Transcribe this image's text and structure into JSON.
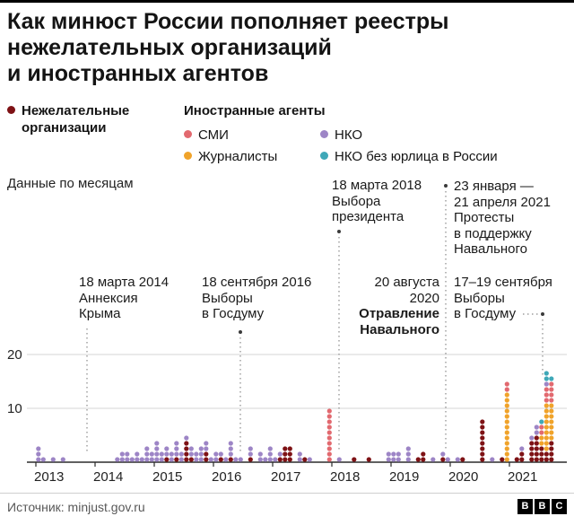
{
  "title": {
    "line1": "Как минюст России пополняет реестры",
    "line2": "нежелательных организаций",
    "line3": "и иностранных агентов"
  },
  "legend": {
    "undesirable": {
      "line1": "Нежелательные",
      "line2": "организации",
      "color": "#7e1215"
    },
    "foreign_header": "Иностранные агенты",
    "items": [
      {
        "label": "СМИ",
        "color": "#e2696f"
      },
      {
        "label": "Журналисты",
        "color": "#f0a32a"
      },
      {
        "label": "НКО",
        "color": "#9d85c6"
      },
      {
        "label": "НКО без юрлица в России",
        "color": "#3fa8b8"
      }
    ]
  },
  "chart_note": "Данные по месяцам",
  "annotations": {
    "crimea": {
      "lines": [
        "18 марта 2014",
        "Аннексия",
        "Крыма"
      ]
    },
    "duma2016": {
      "lines": [
        "18 сентября 2016",
        "Выборы",
        "в Госдуму"
      ]
    },
    "president2018": {
      "lines": [
        "18 марта 2018",
        "Выбора",
        "президента"
      ]
    },
    "navalny2020": {
      "lines": [
        "20 августа",
        "2020"
      ],
      "bold_lines": [
        "Отравление",
        "Навального"
      ]
    },
    "protests2021": {
      "lines": [
        "23 января —",
        "21 апреля 2021",
        "Протесты",
        "в поддержку",
        "Навального"
      ]
    },
    "duma2021": {
      "lines": [
        "17–19 сентября",
        "Выборы",
        "в Госдуму"
      ]
    }
  },
  "chart_data": {
    "type": "bar",
    "style": "stacked-dot-columns, one dot = one entry added per month",
    "title": "Как минюст России пополняет реестры нежелательных организаций и иностранных агентов",
    "x_years": [
      "2013",
      "2014",
      "2015",
      "2016",
      "2017",
      "2018",
      "2019",
      "2020",
      "2021"
    ],
    "y_ticks": [
      10,
      20
    ],
    "ylim": [
      0,
      25
    ],
    "grid": true,
    "series": {
      "u": "Нежелательные организации",
      "s": "СМИ (иностранные агенты)",
      "j": "Журналисты (иностранные агенты)",
      "n": "НКО (иностранные агенты)",
      "t": "НКО без юрлица в России (иностранные агенты)"
    },
    "colors": {
      "u": "#7e1215",
      "s": "#e2696f",
      "j": "#f0a32a",
      "n": "#9d85c6",
      "t": "#3fa8b8"
    },
    "stack_order": [
      "u",
      "j",
      "s",
      "n",
      "t"
    ],
    "columns": [
      {
        "m": "2013-01",
        "n": 3
      },
      {
        "m": "2013-02",
        "n": 1
      },
      {
        "m": "2013-04",
        "n": 1
      },
      {
        "m": "2013-06",
        "n": 1
      },
      {
        "m": "2014-05",
        "n": 1
      },
      {
        "m": "2014-06",
        "n": 2
      },
      {
        "m": "2014-07",
        "n": 2
      },
      {
        "m": "2014-08",
        "n": 1
      },
      {
        "m": "2014-09",
        "n": 2
      },
      {
        "m": "2014-10",
        "n": 1
      },
      {
        "m": "2014-11",
        "n": 3
      },
      {
        "m": "2014-12",
        "n": 2
      },
      {
        "m": "2015-01",
        "n": 4
      },
      {
        "m": "2015-02",
        "n": 2
      },
      {
        "m": "2015-03",
        "u": 1,
        "n": 2
      },
      {
        "m": "2015-04",
        "n": 2
      },
      {
        "m": "2015-05",
        "u": 1,
        "n": 3
      },
      {
        "m": "2015-06",
        "n": 2
      },
      {
        "m": "2015-07",
        "u": 4,
        "n": 1
      },
      {
        "m": "2015-08",
        "u": 1,
        "n": 2
      },
      {
        "m": "2015-09",
        "n": 2
      },
      {
        "m": "2015-10",
        "n": 3
      },
      {
        "m": "2015-11",
        "u": 2,
        "n": 2
      },
      {
        "m": "2015-12",
        "n": 1
      },
      {
        "m": "2016-01",
        "n": 2
      },
      {
        "m": "2016-02",
        "u": 1,
        "n": 1
      },
      {
        "m": "2016-03",
        "n": 1
      },
      {
        "m": "2016-04",
        "u": 1,
        "n": 3
      },
      {
        "m": "2016-05",
        "n": 1
      },
      {
        "m": "2016-06",
        "n": 1
      },
      {
        "m": "2016-08",
        "u": 1,
        "n": 2
      },
      {
        "m": "2016-10",
        "n": 2
      },
      {
        "m": "2016-11",
        "n": 1
      },
      {
        "m": "2016-12",
        "n": 3
      },
      {
        "m": "2017-01",
        "n": 1
      },
      {
        "m": "2017-02",
        "u": 1,
        "n": 1
      },
      {
        "m": "2017-03",
        "u": 3
      },
      {
        "m": "2017-04",
        "u": 3
      },
      {
        "m": "2017-06",
        "n": 2
      },
      {
        "m": "2017-07",
        "u": 1
      },
      {
        "m": "2017-08",
        "n": 1
      },
      {
        "m": "2017-12",
        "s": 10
      },
      {
        "m": "2018-02",
        "n": 1
      },
      {
        "m": "2018-05",
        "u": 1
      },
      {
        "m": "2018-08",
        "u": 1
      },
      {
        "m": "2018-12",
        "n": 2
      },
      {
        "m": "2019-01",
        "n": 2
      },
      {
        "m": "2019-02",
        "n": 2
      },
      {
        "m": "2019-04",
        "n": 3
      },
      {
        "m": "2019-06",
        "u": 1
      },
      {
        "m": "2019-07",
        "u": 2
      },
      {
        "m": "2019-09",
        "n": 1
      },
      {
        "m": "2019-11",
        "u": 1,
        "n": 1
      },
      {
        "m": "2019-12",
        "n": 1
      },
      {
        "m": "2020-02",
        "n": 1
      },
      {
        "m": "2020-03",
        "u": 1
      },
      {
        "m": "2020-07",
        "u": 8
      },
      {
        "m": "2020-09",
        "n": 1
      },
      {
        "m": "2020-11",
        "u": 1
      },
      {
        "m": "2020-12",
        "s": 2,
        "j": 13
      },
      {
        "m": "2021-02",
        "u": 1
      },
      {
        "m": "2021-03",
        "u": 2,
        "n": 1
      },
      {
        "m": "2021-05",
        "u": 4,
        "n": 1
      },
      {
        "m": "2021-06",
        "u": 5,
        "n": 2
      },
      {
        "m": "2021-07",
        "u": 3,
        "s": 2,
        "j": 2,
        "t": 1
      },
      {
        "m": "2021-08",
        "u": 2,
        "s": 3,
        "j": 9,
        "n": 1,
        "t": 2
      },
      {
        "m": "2021-09",
        "u": 4,
        "s": 4,
        "j": 7,
        "t": 1
      }
    ]
  },
  "footer": {
    "source": "Источник: minjust.gov.ru",
    "logo": [
      "B",
      "B",
      "C"
    ]
  }
}
